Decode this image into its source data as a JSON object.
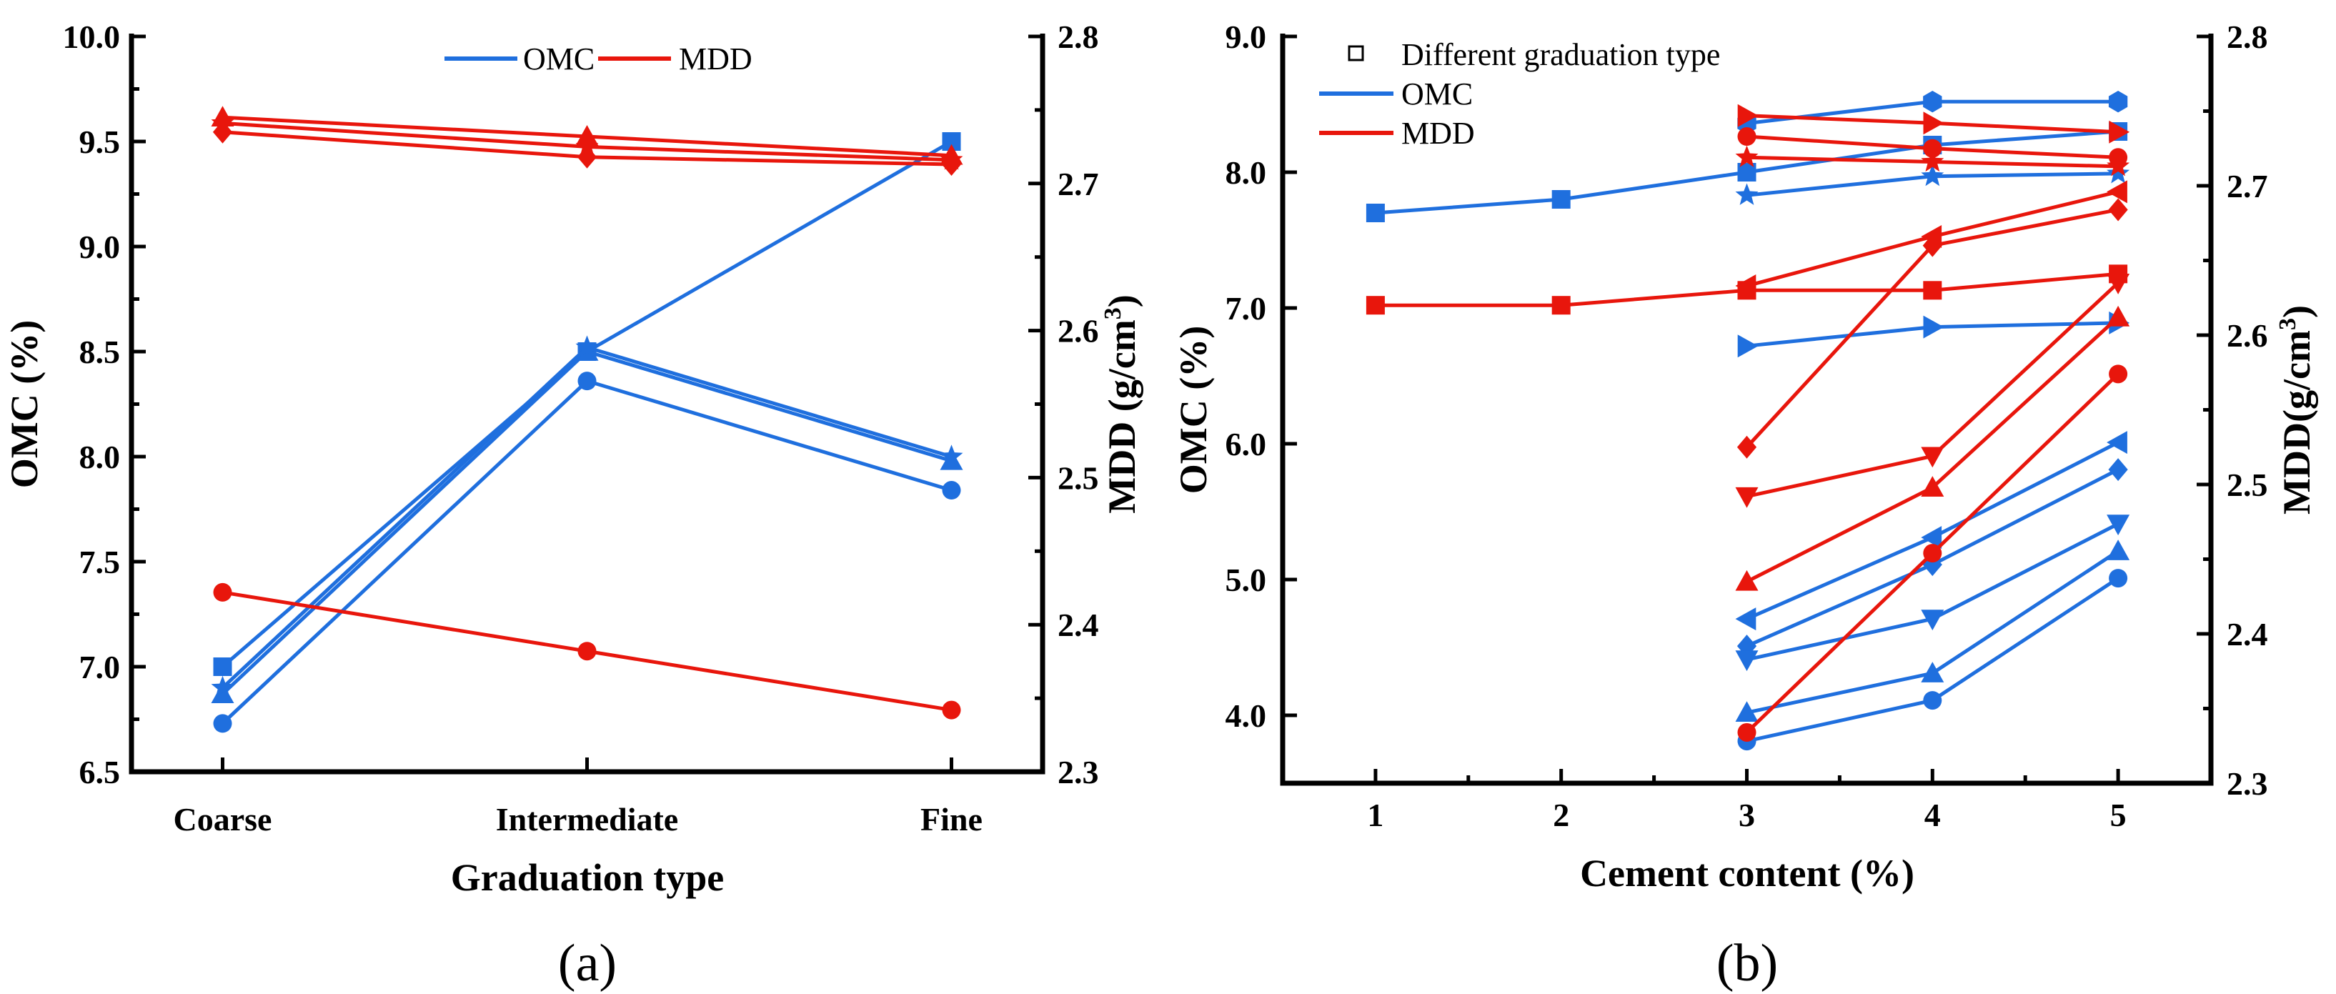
{
  "colors": {
    "omc": "#1f6fde",
    "mdd": "#e8160c",
    "axis": "#000000"
  },
  "chart_data": [
    {
      "type": "line",
      "panel_label": "(a)",
      "xlabel": "Graduation type",
      "ylabel": "OMC (%)",
      "y2label": "MDD (g/cm3)",
      "y2label_main": "MDD (g/cm",
      "y2label_sup": "3",
      "y2label_close": ")",
      "categories": [
        "Coarse",
        "Intermediate",
        "Fine"
      ],
      "ylim": [
        6.5,
        10.0
      ],
      "yticks": [
        "6.5",
        "7.0",
        "7.5",
        "8.0",
        "8.5",
        "9.0",
        "9.5",
        "10.0"
      ],
      "y2lim": [
        2.3,
        2.8
      ],
      "y2ticks": [
        "2.3",
        "2.4",
        "2.5",
        "2.6",
        "2.7",
        "2.8"
      ],
      "legend": {
        "position": "top-center",
        "entries": [
          "OMC",
          "MDD"
        ]
      },
      "series": [
        {
          "name": "OMC",
          "marker": "square",
          "axis": "left",
          "values": [
            7.0,
            8.5,
            9.5
          ]
        },
        {
          "name": "OMC",
          "marker": "triangle-up",
          "axis": "left",
          "values": [
            6.87,
            8.5,
            7.98
          ]
        },
        {
          "name": "OMC",
          "marker": "star",
          "axis": "left",
          "values": [
            6.9,
            8.52,
            8.0
          ]
        },
        {
          "name": "OMC",
          "marker": "circle",
          "axis": "left",
          "values": [
            6.73,
            8.36,
            7.84
          ]
        },
        {
          "name": "MDD",
          "marker": "circle",
          "axis": "right",
          "values": [
            2.422,
            2.382,
            2.342
          ]
        },
        {
          "name": "MDD",
          "marker": "triangle-up",
          "axis": "right",
          "values": [
            2.745,
            2.732,
            2.719
          ]
        },
        {
          "name": "MDD",
          "marker": "star",
          "axis": "right",
          "values": [
            2.741,
            2.725,
            2.716
          ]
        },
        {
          "name": "MDD",
          "marker": "diamond",
          "axis": "right",
          "values": [
            2.735,
            2.718,
            2.713
          ]
        }
      ]
    },
    {
      "type": "line",
      "panel_label": "(b)",
      "xlabel": "Cement content (%)",
      "ylabel": "OMC (%)",
      "y2label": "MDD(g/cm3)",
      "y2label_main": "MDD(g/cm",
      "y2label_sup": "3",
      "y2label_close": ")",
      "x": [
        1,
        2,
        3,
        4,
        5
      ],
      "xlim": [
        0.5,
        5.5
      ],
      "xticks": [
        "1",
        "2",
        "3",
        "4",
        "5"
      ],
      "ylim": [
        3.5,
        9.0
      ],
      "yticks": [
        "4.0",
        "5.0",
        "6.0",
        "7.0",
        "8.0",
        "9.0"
      ],
      "y2lim": [
        2.3,
        2.8
      ],
      "y2ticks": [
        "2.3",
        "2.4",
        "2.5",
        "2.6",
        "2.7",
        "2.8"
      ],
      "legend": {
        "position": "top-left",
        "entries": [
          "Different graduation type",
          "OMC",
          "MDD"
        ]
      },
      "series": [
        {
          "name": "OMC",
          "marker": "square",
          "axis": "left",
          "x": [
            1,
            2,
            3,
            4,
            5
          ],
          "values": [
            7.7,
            7.8,
            8.0,
            8.2,
            8.3
          ]
        },
        {
          "name": "OMC",
          "marker": "hexagon",
          "axis": "left",
          "x": [
            3,
            4,
            5
          ],
          "values": [
            8.36,
            8.52,
            8.52
          ]
        },
        {
          "name": "OMC",
          "marker": "star",
          "axis": "left",
          "x": [
            3,
            4,
            5
          ],
          "values": [
            7.83,
            7.97,
            7.99
          ]
        },
        {
          "name": "OMC",
          "marker": "triangle-right",
          "axis": "left",
          "x": [
            3,
            4,
            5
          ],
          "values": [
            6.72,
            6.86,
            6.89
          ]
        },
        {
          "name": "OMC",
          "marker": "triangle-left",
          "axis": "left",
          "x": [
            3,
            4,
            5
          ],
          "values": [
            4.71,
            5.31,
            6.01
          ]
        },
        {
          "name": "OMC",
          "marker": "diamond",
          "axis": "left",
          "x": [
            3,
            4,
            5
          ],
          "values": [
            4.51,
            5.11,
            5.81
          ]
        },
        {
          "name": "OMC",
          "marker": "triangle-down",
          "axis": "left",
          "x": [
            3,
            4,
            5
          ],
          "values": [
            4.41,
            4.71,
            5.41
          ]
        },
        {
          "name": "OMC",
          "marker": "triangle-up",
          "axis": "left",
          "x": [
            3,
            4,
            5
          ],
          "values": [
            4.02,
            4.31,
            5.21
          ]
        },
        {
          "name": "OMC",
          "marker": "circle",
          "axis": "left",
          "x": [
            3,
            4,
            5
          ],
          "values": [
            3.81,
            4.11,
            5.01
          ]
        },
        {
          "name": "MDD",
          "marker": "square",
          "axis": "right",
          "x": [
            1,
            2,
            3,
            4,
            5
          ],
          "values": [
            2.62,
            2.62,
            2.63,
            2.63,
            2.641
          ]
        },
        {
          "name": "MDD",
          "marker": "triangle-right",
          "axis": "right",
          "x": [
            3,
            4,
            5
          ],
          "values": [
            2.747,
            2.742,
            2.736
          ]
        },
        {
          "name": "MDD",
          "marker": "circle",
          "axis": "right",
          "x": [
            3,
            4,
            5
          ],
          "values": [
            2.733,
            2.725,
            2.719
          ]
        },
        {
          "name": "MDD",
          "marker": "star",
          "axis": "right",
          "x": [
            3,
            4,
            5
          ],
          "values": [
            2.719,
            2.716,
            2.713
          ]
        },
        {
          "name": "MDD",
          "marker": "triangle-left",
          "axis": "right",
          "x": [
            3,
            4,
            5
          ],
          "values": [
            2.633,
            2.666,
            2.696
          ]
        },
        {
          "name": "MDD",
          "marker": "diamond",
          "axis": "right",
          "x": [
            3,
            4,
            5
          ],
          "values": [
            2.525,
            2.66,
            2.684
          ]
        },
        {
          "name": "MDD",
          "marker": "triangle-down",
          "axis": "right",
          "x": [
            3,
            4,
            5
          ],
          "values": [
            2.492,
            2.519,
            2.635
          ]
        },
        {
          "name": "MDD",
          "marker": "triangle-up",
          "axis": "right",
          "x": [
            3,
            4,
            5
          ],
          "values": [
            2.435,
            2.498,
            2.612
          ]
        },
        {
          "name": "MDD",
          "marker": "circle",
          "axis": "right",
          "x": [
            3,
            4,
            5
          ],
          "values": [
            2.334,
            2.454,
            2.574
          ]
        }
      ]
    }
  ]
}
